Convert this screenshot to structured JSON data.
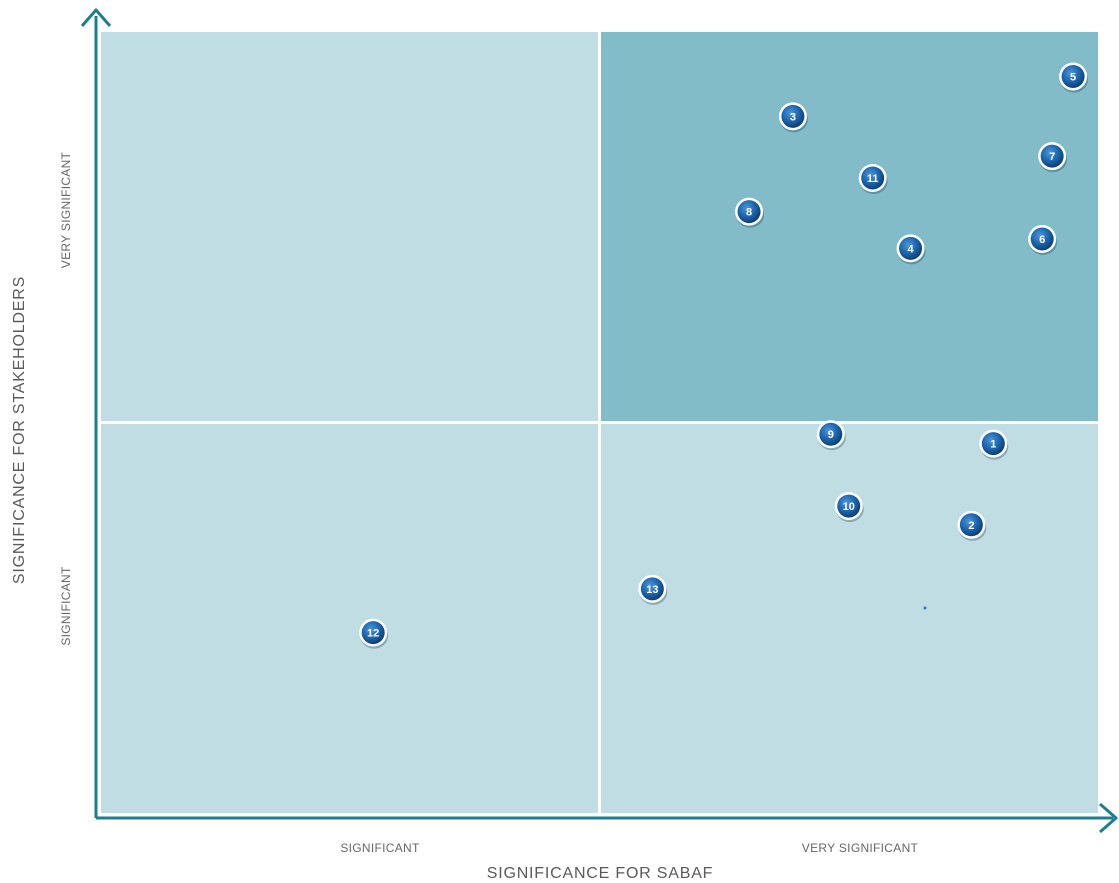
{
  "chart_data": {
    "type": "scatter",
    "xlabel": "SIGNIFICANCE FOR SABAF",
    "ylabel": "SIGNIFICANCE FOR STAKEHOLDERS",
    "x_tick_labels": [
      "SIGNIFICANT",
      "VERY SIGNIFICANT"
    ],
    "y_tick_labels": [
      "SIGNIFICANT",
      "VERY SIGNIFICANT"
    ],
    "xlim": [
      0,
      100
    ],
    "ylim": [
      0,
      100
    ],
    "quadrant_split": {
      "x": 50,
      "y": 50
    },
    "highlighted_quadrant": "top-right",
    "points": [
      {
        "label": "1",
        "x": 89.5,
        "y": 47.3
      },
      {
        "label": "2",
        "x": 87.3,
        "y": 36.9
      },
      {
        "label": "3",
        "x": 69.4,
        "y": 89.2
      },
      {
        "label": "4",
        "x": 81.2,
        "y": 72.3
      },
      {
        "label": "5",
        "x": 97.5,
        "y": 94.3
      },
      {
        "label": "6",
        "x": 94.4,
        "y": 73.5
      },
      {
        "label": "7",
        "x": 95.4,
        "y": 84.1
      },
      {
        "label": "8",
        "x": 65.0,
        "y": 77.0
      },
      {
        "label": "9",
        "x": 73.2,
        "y": 48.5
      },
      {
        "label": "10",
        "x": 75.0,
        "y": 39.3
      },
      {
        "label": "11",
        "x": 77.4,
        "y": 81.3
      },
      {
        "label": "12",
        "x": 27.3,
        "y": 23.1
      },
      {
        "label": "13",
        "x": 55.3,
        "y": 28.7
      }
    ]
  },
  "colors": {
    "quadrant_light": "#bfdde2",
    "quadrant_highlight": "#82bcc9",
    "axis": "#1d7f8e",
    "marker_fill": "#1e67b0",
    "marker_dark": "#0d3f78",
    "marker_ring": "#ffffff"
  }
}
